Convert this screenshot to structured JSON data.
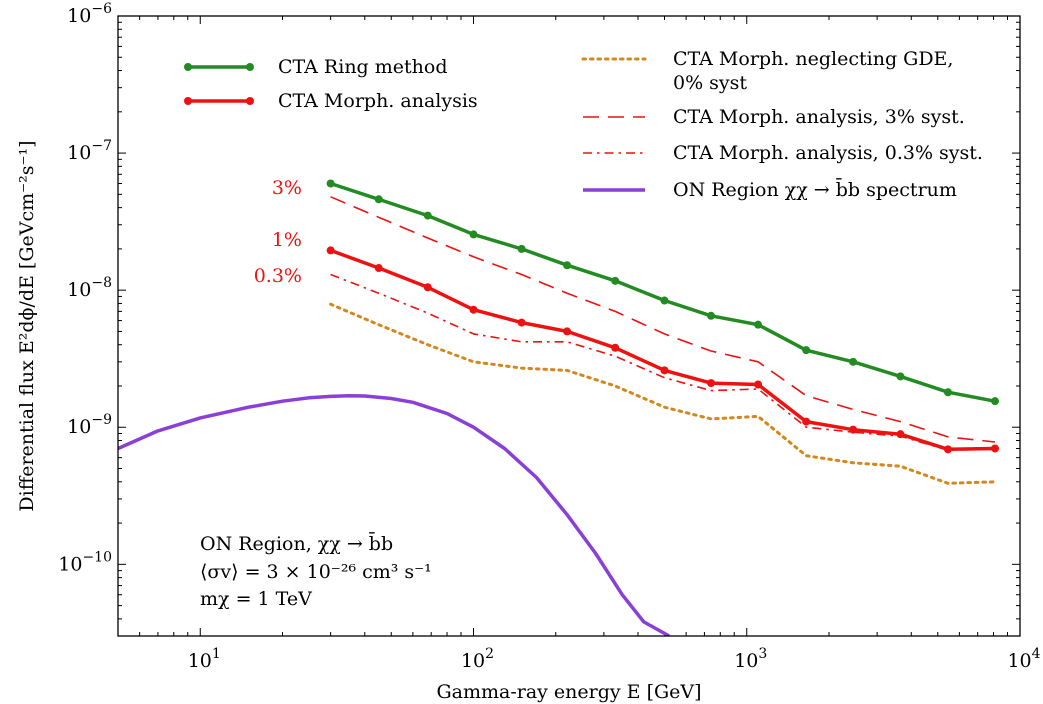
{
  "chart_data": {
    "type": "line",
    "xlabel": "Gamma-ray energy E [GeV]",
    "ylabel": "Differential flux E²dϕ/dE [GeVcm⁻²s⁻¹]",
    "xscale": "log",
    "yscale": "log",
    "xlim": [
      5,
      10000
    ],
    "ylim": [
      3e-11,
      1e-06
    ],
    "grid": false,
    "legend_placement": "top",
    "x_tick_labels": [
      {
        "value": 10,
        "base": "10",
        "exp": "1"
      },
      {
        "value": 100,
        "base": "10",
        "exp": "2"
      },
      {
        "value": 1000,
        "base": "10",
        "exp": "3"
      },
      {
        "value": 10000,
        "base": "10",
        "exp": "4"
      }
    ],
    "y_tick_labels": [
      {
        "value": 1e-10,
        "base": "10",
        "exp": "−10"
      },
      {
        "value": 1e-09,
        "base": "10",
        "exp": "−9"
      },
      {
        "value": 1e-08,
        "base": "10",
        "exp": "−8"
      },
      {
        "value": 1e-07,
        "base": "10",
        "exp": "−7"
      },
      {
        "value": 1e-06,
        "base": "10",
        "exp": "−6"
      }
    ],
    "series": [
      {
        "name": "CTA Ring method",
        "color": "#228b22",
        "style": "solid-markers",
        "x": [
          30,
          45,
          68,
          100,
          150,
          220,
          330,
          500,
          740,
          1100,
          1650,
          2450,
          3650,
          5450,
          8100
        ],
        "y": [
          6e-08,
          4.6e-08,
          3.5e-08,
          2.55e-08,
          2e-08,
          1.52e-08,
          1.17e-08,
          8.4e-09,
          6.5e-09,
          5.6e-09,
          3.65e-09,
          3e-09,
          2.35e-09,
          1.8e-09,
          1.55e-09
        ]
      },
      {
        "name": "CTA Morph. analysis",
        "color": "#ee1111",
        "style": "solid-markers",
        "x": [
          30,
          45,
          68,
          100,
          150,
          220,
          330,
          500,
          740,
          1100,
          1650,
          2450,
          3650,
          5450,
          8100
        ],
        "y": [
          1.95e-08,
          1.45e-08,
          1.05e-08,
          7.2e-09,
          5.8e-09,
          5e-09,
          3.8e-09,
          2.6e-09,
          2.1e-09,
          2.05e-09,
          1.1e-09,
          9.6e-10,
          8.9e-10,
          6.9e-10,
          7e-10
        ]
      },
      {
        "name": "CTA Morph. neglecting GDE, 0% syst",
        "color": "#d4871b",
        "style": "dotted",
        "x": [
          30,
          45,
          68,
          100,
          150,
          220,
          330,
          500,
          740,
          1100,
          1650,
          2450,
          3650,
          5450,
          8100
        ],
        "y": [
          7.9e-09,
          5.6e-09,
          4e-09,
          3e-09,
          2.7e-09,
          2.6e-09,
          2e-09,
          1.4e-09,
          1.15e-09,
          1.2e-09,
          6.2e-10,
          5.5e-10,
          5.2e-10,
          3.9e-10,
          4e-10
        ]
      },
      {
        "name": "CTA Morph. analysis, 3% syst.",
        "color": "#ee1111",
        "style": "dashed",
        "x": [
          30,
          45,
          68,
          100,
          150,
          220,
          330,
          500,
          740,
          1100,
          1650,
          2450,
          3650,
          5450,
          8100
        ],
        "y": [
          4.8e-08,
          3.4e-08,
          2.4e-08,
          1.75e-08,
          1.3e-08,
          9.5e-09,
          7e-09,
          4.8e-09,
          3.6e-09,
          3e-09,
          1.7e-09,
          1.35e-09,
          1.1e-09,
          8.5e-10,
          7.8e-10
        ]
      },
      {
        "name": "CTA Morph. analysis, 0.3% syst.",
        "color": "#ee1111",
        "style": "dashdot",
        "x": [
          30,
          45,
          68,
          100,
          150,
          220,
          330,
          500,
          740,
          1100,
          1650,
          2450,
          3650,
          5450,
          8100
        ],
        "y": [
          1.3e-08,
          9.5e-09,
          6.8e-09,
          4.8e-09,
          4.2e-09,
          4.2e-09,
          3.3e-09,
          2.3e-09,
          1.85e-09,
          1.9e-09,
          1e-09,
          9.2e-10,
          8.6e-10,
          6.8e-10,
          6.9e-10
        ]
      },
      {
        "name": "ON Region χχ → b̄b spectrum",
        "color": "#8a3fd6",
        "style": "solid",
        "x": [
          5,
          7,
          10,
          15,
          20,
          25,
          30,
          35,
          40,
          50,
          60,
          80,
          100,
          130,
          170,
          220,
          280,
          350,
          420,
          520
        ],
        "y": [
          7e-10,
          9.4e-10,
          1.17e-09,
          1.4e-09,
          1.55e-09,
          1.64e-09,
          1.68e-09,
          1.7e-09,
          1.69e-09,
          1.62e-09,
          1.52e-09,
          1.26e-09,
          1e-09,
          7e-10,
          4.3e-10,
          2.3e-10,
          1.2e-10,
          6e-11,
          3.8e-11,
          3e-11
        ]
      }
    ],
    "legend": [
      {
        "label": "CTA Ring method",
        "color": "#228b22",
        "style": "solid-markers"
      },
      {
        "label": "CTA Morph. analysis",
        "color": "#ee1111",
        "style": "solid-markers"
      },
      {
        "label": "CTA Morph. neglecting GDE,",
        "label2": "0% syst",
        "color": "#d4871b",
        "style": "dotted"
      },
      {
        "label": "CTA Morph. analysis, 3% syst.",
        "color": "#ee1111",
        "style": "dashed"
      },
      {
        "label": "CTA Morph. analysis, 0.3% syst.",
        "color": "#ee1111",
        "style": "dashdot"
      },
      {
        "label": "ON Region χχ → b̄b spectrum",
        "color": "#8a3fd6",
        "style": "solid"
      }
    ],
    "syst_labels": [
      "3%",
      "1%",
      "0.3%"
    ],
    "annotation": {
      "line1": "ON Region, χχ → b̄b",
      "line2": "⟨σv⟩ = 3 × 10⁻²⁶ cm³ s⁻¹",
      "line3": "mχ = 1 TeV"
    }
  }
}
